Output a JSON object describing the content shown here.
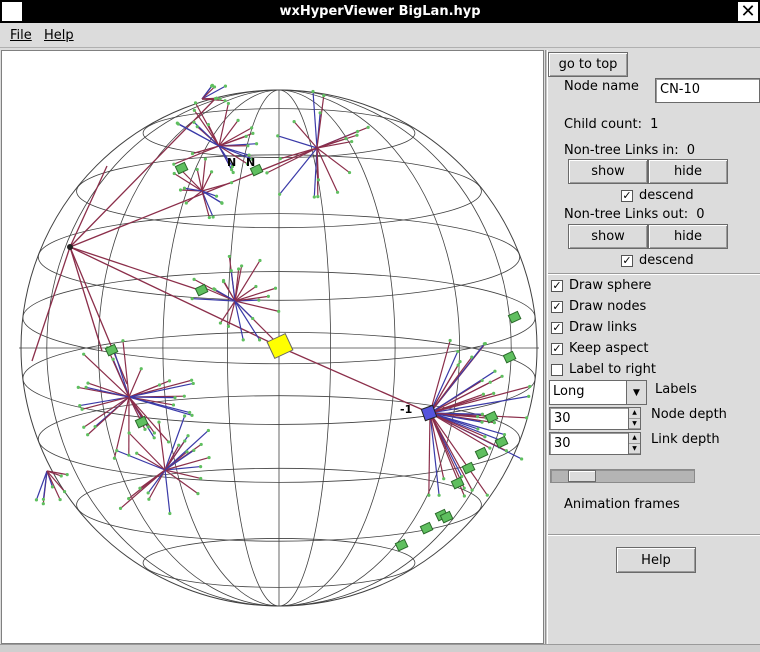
{
  "window": {
    "title": "wxHyperViewer BigLan.hyp",
    "close_glyph": "✕"
  },
  "menu": {
    "file": "File",
    "help": "Help"
  },
  "panel": {
    "go_to_top": "go to top",
    "node_name_label": "Node name",
    "node_name_value": "CN-10",
    "child_count_label": "Child count:",
    "child_count_value": "1",
    "links_in_label": "Non-tree Links in:",
    "links_in_value": "0",
    "links_out_label": "Non-tree Links out:",
    "links_out_value": "0",
    "show": "show",
    "hide": "hide",
    "descend": "descend",
    "descend_in_checked": true,
    "descend_out_checked": true,
    "options": [
      {
        "label": "Draw sphere",
        "checked": true
      },
      {
        "label": "Draw nodes",
        "checked": true
      },
      {
        "label": "Draw links",
        "checked": true
      },
      {
        "label": "Keep aspect",
        "checked": true
      },
      {
        "label": "Label to right",
        "checked": false
      }
    ],
    "labels_select": "Long",
    "labels_caption": "Labels",
    "node_depth_value": "30",
    "node_depth_caption": "Node depth",
    "link_depth_value": "30",
    "link_depth_caption": "Link depth",
    "animation_frames_label": "Animation frames",
    "animation_frames_fraction": 0.15,
    "help_button": "Help"
  },
  "viewer": {
    "node_labels": [
      "N",
      "N",
      "-1"
    ],
    "colors": {
      "sphere_lines": "#404040",
      "link_tree": "#8b2e4a",
      "link_blue": "#3a3aa8",
      "node_green": "#5fbf5f",
      "node_yellow": "#ffff00",
      "node_blue": "#5555dd"
    }
  }
}
